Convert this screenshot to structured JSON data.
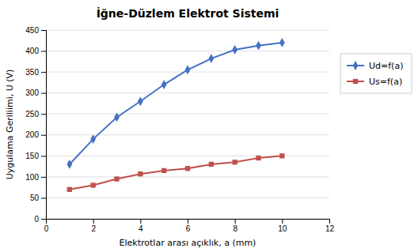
{
  "chart_data": {
    "type": "line",
    "title": "İğne-Düzlem Elektrot Sistemi",
    "x_label": "Elektrotlar arası açıklık,  a (mm)",
    "y_label": "Uygulama Geriliimi, U (V)",
    "x": [
      1,
      2,
      3,
      4,
      5,
      6,
      7,
      8,
      9,
      10
    ],
    "series": [
      {
        "name": "Ud=f(a)",
        "color": "#4472C4",
        "marker": "diamond",
        "values": [
          130,
          190,
          242,
          280,
          320,
          355,
          382,
          403,
          413,
          420
        ]
      },
      {
        "name": "Us=f(a)",
        "color": "#C0504D",
        "marker": "square",
        "values": [
          70,
          80,
          95,
          107,
          115,
          120,
          130,
          135,
          145,
          150
        ]
      }
    ],
    "xlim": [
      0,
      12
    ],
    "ylim": [
      0,
      450
    ],
    "xticks": [
      0,
      2,
      4,
      6,
      8,
      10,
      12
    ],
    "yticks": [
      0,
      50,
      100,
      150,
      200,
      250,
      300,
      350,
      400,
      450
    ],
    "grid": "y",
    "legend": "right"
  }
}
